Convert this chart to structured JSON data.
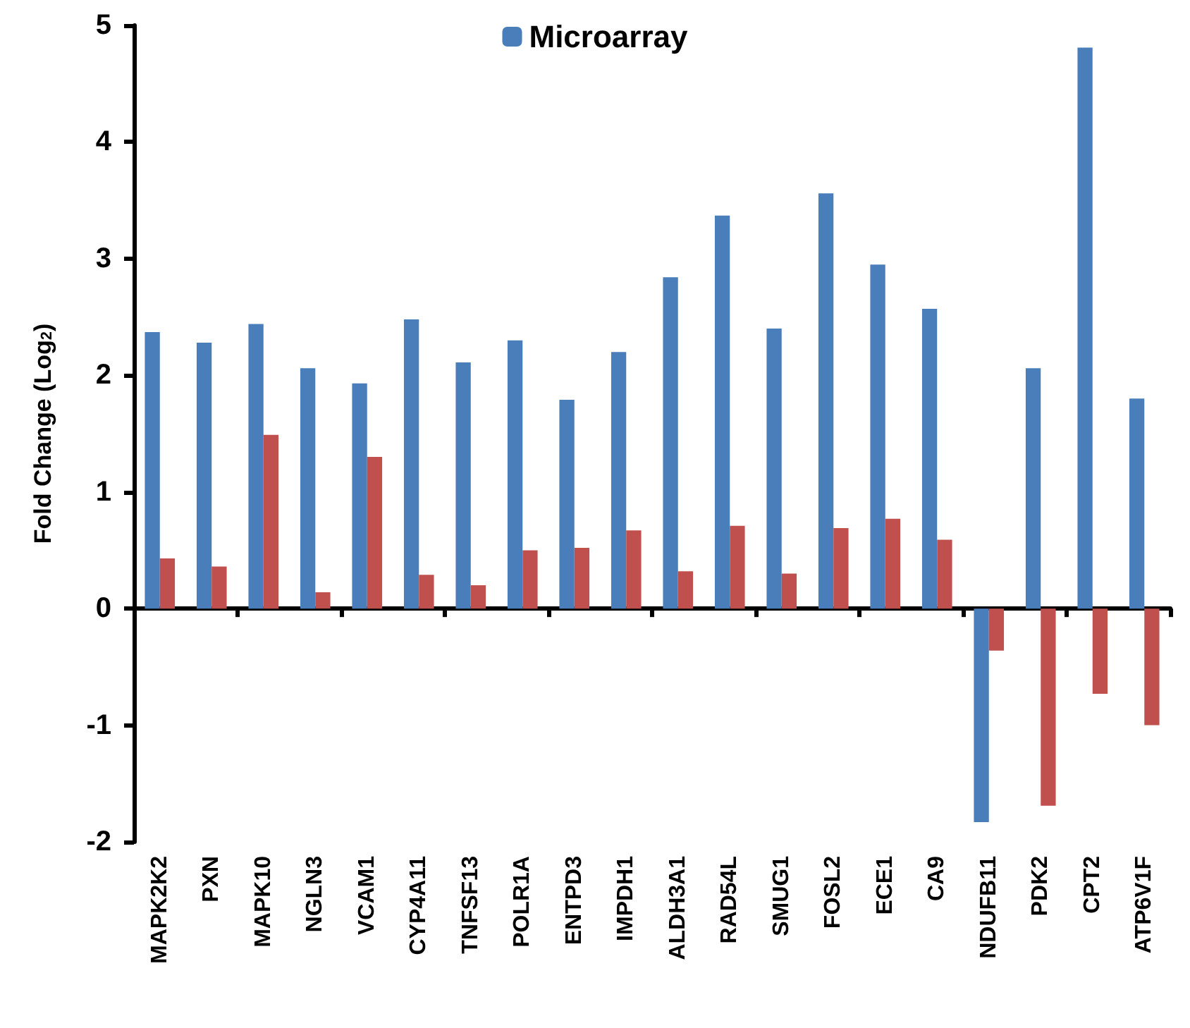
{
  "chart_data": {
    "type": "bar",
    "ylabel": "Fold Change (Log$_{2}$)",
    "categories": [
      "MAPK2K2",
      "PXN",
      "MAPK10",
      "NGLN3",
      "VCAM1",
      "CYP4A11",
      "TNFSF13",
      "POLR1A",
      "ENTPD3",
      "IMPDH1",
      "ALDH3A1",
      "RAD54L",
      "SMUG1",
      "FOSL2",
      "ECE1",
      "CA9",
      "NDUFB11",
      "PDK2",
      "CPT2",
      "ATP6V1F"
    ],
    "series": [
      {
        "name": "Microarray",
        "color": "#4a7ebb",
        "values": [
          2.37,
          2.28,
          2.44,
          2.06,
          1.93,
          2.48,
          2.11,
          2.3,
          1.79,
          2.2,
          2.84,
          3.37,
          2.4,
          3.56,
          2.95,
          2.57,
          -1.83,
          2.06,
          4.81,
          1.8
        ]
      },
      {
        "color": "#c0504d",
        "values": [
          0.43,
          0.36,
          1.49,
          0.14,
          1.3,
          0.29,
          0.2,
          0.5,
          0.52,
          0.67,
          0.32,
          0.71,
          0.3,
          0.69,
          0.77,
          0.59,
          -0.36,
          -1.69,
          -0.73,
          -1.0
        ]
      }
    ],
    "ylim": [
      -2,
      5
    ],
    "yticks": [
      -2,
      -1,
      0,
      1,
      2,
      3,
      4,
      5
    ],
    "legend": "top"
  }
}
